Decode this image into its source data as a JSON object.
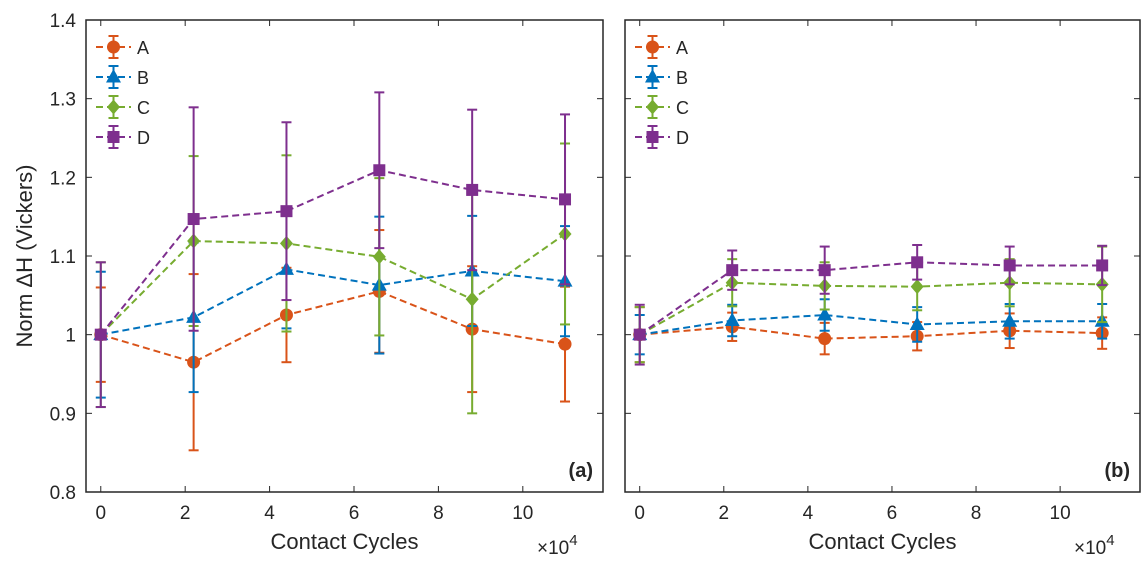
{
  "chart_data": [
    {
      "type": "line",
      "panel_label": "(a)",
      "xlabel": "Contact Cycles",
      "x_multiplier": "×10",
      "x_multiplier_exp": "4",
      "ylabel": "Norm ΔH (Vickers)",
      "xlim": [
        -0.35,
        11.9
      ],
      "ylim": [
        0.8,
        1.4
      ],
      "xticks": [
        0,
        2,
        4,
        6,
        8,
        10
      ],
      "yticks": [
        0.8,
        0.9,
        1,
        1.1,
        1.2,
        1.3,
        1.4
      ],
      "ytick_labels": [
        "0.8",
        "0.9",
        "1",
        "1.1",
        "1.2",
        "1.3",
        "1.4"
      ],
      "show_yticklabels": true,
      "legend_position": "top-left",
      "x": [
        0,
        2.2,
        4.4,
        6.6,
        8.8,
        11
      ],
      "series": [
        {
          "name": "A",
          "color": "#D95319",
          "marker": "circle",
          "values": [
            1.0,
            0.965,
            1.025,
            1.055,
            1.007,
            0.988
          ],
          "errors": [
            0.06,
            0.112,
            0.06,
            0.078,
            0.08,
            0.073
          ]
        },
        {
          "name": "B",
          "color": "#0072BD",
          "marker": "triangle",
          "values": [
            1.0,
            1.022,
            1.083,
            1.063,
            1.081,
            1.068
          ],
          "errors": [
            0.08,
            0.095,
            0.075,
            0.087,
            0.07,
            0.07
          ]
        },
        {
          "name": "C",
          "color": "#77AC30",
          "marker": "diamond",
          "values": [
            1.0,
            1.119,
            1.116,
            1.099,
            1.045,
            1.128
          ],
          "errors": [
            0.092,
            0.108,
            0.112,
            0.1,
            0.145,
            0.115
          ]
        },
        {
          "name": "D",
          "color": "#7E2F8E",
          "marker": "square",
          "values": [
            1.0,
            1.147,
            1.157,
            1.209,
            1.184,
            1.172
          ],
          "errors": [
            0.092,
            0.142,
            0.113,
            0.099,
            0.102,
            0.108
          ]
        }
      ]
    },
    {
      "type": "line",
      "panel_label": "(b)",
      "xlabel": "Contact Cycles",
      "x_multiplier": "×10",
      "x_multiplier_exp": "4",
      "ylabel": "",
      "xlim": [
        -0.35,
        11.9
      ],
      "ylim": [
        0.8,
        1.4
      ],
      "xticks": [
        0,
        2,
        4,
        6,
        8,
        10
      ],
      "yticks": [
        0.8,
        0.9,
        1,
        1.1,
        1.2,
        1.3,
        1.4
      ],
      "ytick_labels": [],
      "show_yticklabels": false,
      "legend_position": "top-left",
      "x": [
        0,
        2.2,
        4.4,
        6.6,
        8.8,
        11
      ],
      "series": [
        {
          "name": "A",
          "color": "#D95319",
          "marker": "circle",
          "values": [
            1.0,
            1.01,
            0.995,
            0.998,
            1.005,
            1.002
          ],
          "errors": [
            0.035,
            0.018,
            0.02,
            0.018,
            0.022,
            0.02
          ]
        },
        {
          "name": "B",
          "color": "#0072BD",
          "marker": "triangle",
          "values": [
            1.0,
            1.018,
            1.025,
            1.013,
            1.017,
            1.017
          ],
          "errors": [
            0.025,
            0.02,
            0.02,
            0.022,
            0.022,
            0.022
          ]
        },
        {
          "name": "C",
          "color": "#77AC30",
          "marker": "diamond",
          "values": [
            1.0,
            1.066,
            1.062,
            1.061,
            1.066,
            1.064
          ],
          "errors": [
            0.035,
            0.03,
            0.03,
            0.03,
            0.03,
            0.048
          ]
        },
        {
          "name": "D",
          "color": "#7E2F8E",
          "marker": "square",
          "values": [
            1.0,
            1.082,
            1.082,
            1.092,
            1.088,
            1.088
          ],
          "errors": [
            0.038,
            0.025,
            0.03,
            0.022,
            0.024,
            0.025
          ]
        }
      ]
    }
  ]
}
